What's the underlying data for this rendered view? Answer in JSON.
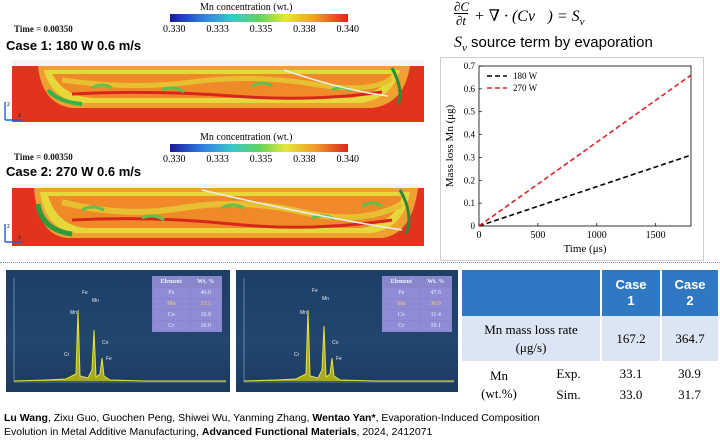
{
  "sim": {
    "case1": {
      "time": "Time = 0.00350",
      "title": "Case 1: 180 W 0.6 m/s"
    },
    "case2": {
      "time": "Time = 0.00350",
      "title": "Case 2: 270 W 0.6 m/s"
    },
    "colorbar": {
      "label": "Mn concentration (wt.)",
      "ticks": [
        "0.330",
        "0.333",
        "0.335",
        "0.338",
        "0.340"
      ]
    },
    "axes": {
      "z": "z",
      "x": "x"
    }
  },
  "equation": {
    "line1": "∂C/∂t + ∇·(Cv⃗) = Sᵥ",
    "dC": "∂C",
    "dt": "∂t",
    "rest": "+ ∇ · (Cv⃗) = S",
    "rest_sub": "v",
    "line2_sym": "S",
    "line2_sub": "v",
    "line2_text": " source term by evaporation"
  },
  "chart_data": {
    "type": "line",
    "title": "",
    "xlabel": "Time (μs)",
    "ylabel": "Mass loss Mn (μg)",
    "xlim": [
      0,
      1800
    ],
    "ylim": [
      0,
      0.7
    ],
    "xticks": [
      "0",
      "500",
      "1000",
      "1500"
    ],
    "yticks": [
      "0",
      "0.1",
      "0.2",
      "0.3",
      "0.4",
      "0.5",
      "0.6",
      "0.7"
    ],
    "legend_position": "top-left",
    "series": [
      {
        "name": "180 W",
        "color": "#000000",
        "dash": true,
        "x": [
          0,
          1800
        ],
        "y": [
          0,
          0.31
        ]
      },
      {
        "name": "270 W",
        "color": "#d62728",
        "dash": true,
        "x": [
          0,
          1800
        ],
        "y": [
          0,
          0.66
        ]
      }
    ]
  },
  "eds": [
    {
      "header": [
        "Element",
        "Wt. %"
      ],
      "rows": [
        [
          "Fe",
          "46.0"
        ],
        [
          "Mn",
          "33.1"
        ],
        [
          "Co",
          "10.9"
        ],
        [
          "Cr",
          "10.0"
        ]
      ],
      "peaks": [
        "Mn",
        "Mn",
        "Fe",
        "Co",
        "Cr",
        "Fe"
      ]
    },
    {
      "header": [
        "Element",
        "Wt. %"
      ],
      "rows": [
        [
          "Fe",
          "47.6"
        ],
        [
          "Mn",
          "30.9"
        ],
        [
          "Co",
          "11.4"
        ],
        [
          "Cr",
          "10.1"
        ]
      ],
      "peaks": [
        "Mn",
        "Mn",
        "Fe",
        "Co",
        "Cr",
        "Fe"
      ]
    }
  ],
  "results": {
    "col1": "Case 1",
    "col1_a": "Case",
    "col1_b": "1",
    "col2_a": "Case",
    "col2_b": "2",
    "row1_label_a": "Mn mass loss rate",
    "row1_label_b": "(μg/s)",
    "row1_v1": "167.2",
    "row1_v2": "364.7",
    "row2_label_a": "Mn",
    "row2_label_b": "(wt.%)",
    "row2_sub": "Exp.",
    "row2_v1": "33.1",
    "row2_v2": "30.9",
    "row3_sub": "Sim.",
    "row3_v1": "33.0",
    "row3_v2": "31.7"
  },
  "citation": {
    "a1": "Lu Wang",
    "rest1": ", Zixu Guo, Guochen Peng, Shiwei Wu, Yanming Zhang, ",
    "a2": "Wentao Yan*",
    "rest2": ", Evaporation-Induced Composition",
    "line2a": "Evolution in Metal Additive Manufacturing, ",
    "journal": "Advanced Functional Materials",
    "line2b": ", 2024, 2412071"
  }
}
